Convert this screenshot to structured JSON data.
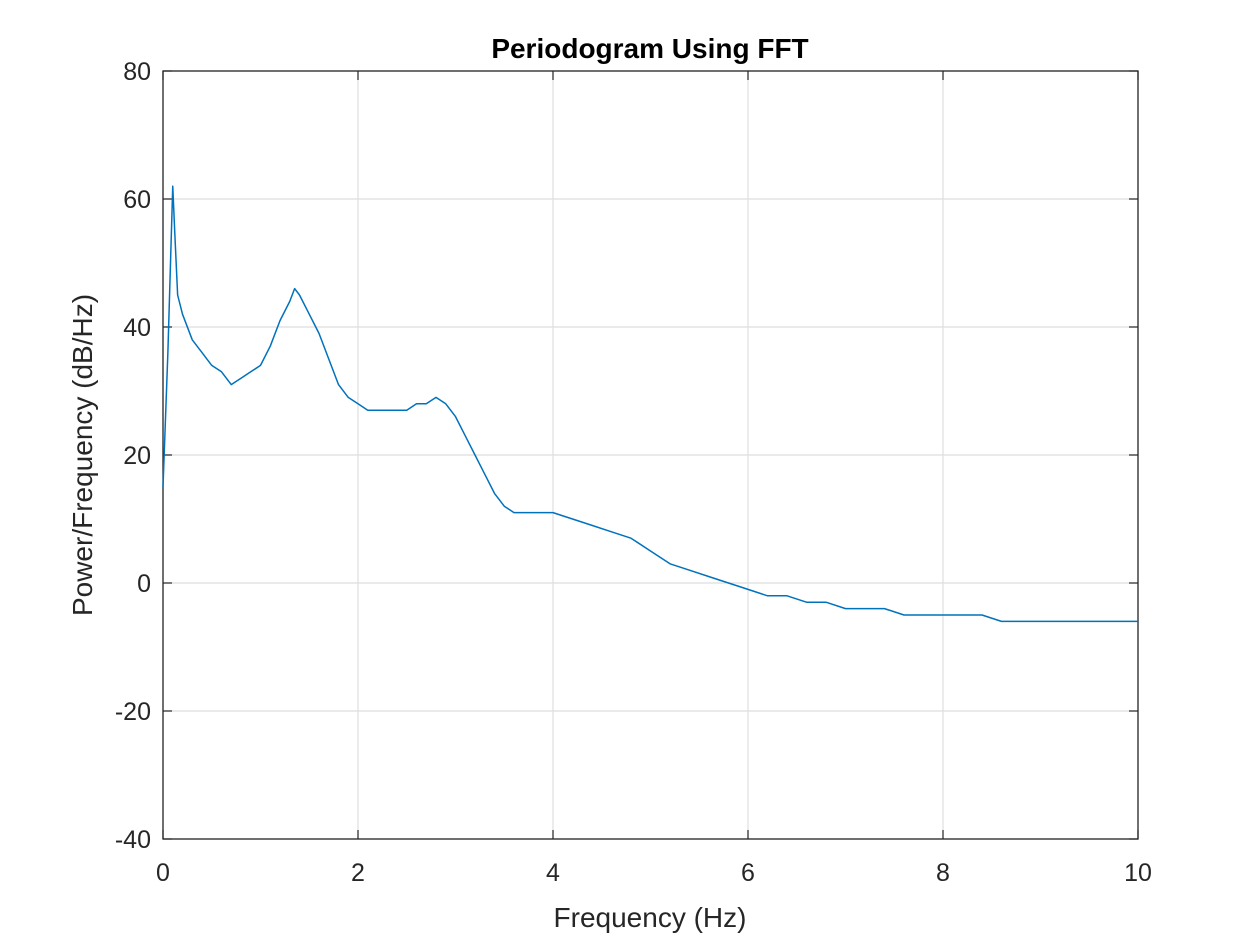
{
  "chart_data": {
    "type": "line",
    "title": "Periodogram Using FFT",
    "xlabel": "Frequency (Hz)",
    "ylabel": "Power/Frequency (dB/Hz)",
    "xlim": [
      0,
      10
    ],
    "ylim": [
      -40,
      80
    ],
    "x_ticks": [
      "0",
      "2",
      "4",
      "6",
      "8",
      "10"
    ],
    "y_ticks": [
      "-40",
      "-20",
      "0",
      "20",
      "40",
      "60",
      "80"
    ],
    "grid": true,
    "legend": "none",
    "series": [
      {
        "color": "#0072BD",
        "x": [
          0,
          0.05,
          0.1,
          0.12,
          0.15,
          0.2,
          0.3,
          0.4,
          0.5,
          0.6,
          0.7,
          0.8,
          0.9,
          1.0,
          1.1,
          1.2,
          1.3,
          1.35,
          1.4,
          1.5,
          1.6,
          1.7,
          1.8,
          1.9,
          2.0,
          2.1,
          2.2,
          2.3,
          2.4,
          2.5,
          2.6,
          2.7,
          2.8,
          2.9,
          3.0,
          3.1,
          3.2,
          3.3,
          3.4,
          3.5,
          3.6,
          3.7,
          3.8,
          3.9,
          4.0,
          4.2,
          4.4,
          4.6,
          4.8,
          5.0,
          5.2,
          5.4,
          5.6,
          5.8,
          6.0,
          6.2,
          6.4,
          6.6,
          6.8,
          7.0,
          7.2,
          7.4,
          7.6,
          7.8,
          8.0,
          8.2,
          8.4,
          8.6,
          8.8,
          9.0,
          9.2,
          9.4,
          9.6,
          9.8,
          10.0
        ],
        "y": [
          15,
          36,
          62,
          55,
          45,
          42,
          38,
          36,
          34,
          33,
          31,
          32,
          33,
          34,
          37,
          41,
          44,
          46,
          45,
          42,
          39,
          35,
          31,
          29,
          28,
          27,
          27,
          27,
          27,
          27,
          28,
          28,
          29,
          28,
          26,
          23,
          20,
          17,
          14,
          12,
          11,
          11,
          11,
          11,
          11,
          10,
          9,
          8,
          7,
          5,
          3,
          2,
          1,
          0,
          -1,
          -2,
          -2,
          -3,
          -3,
          -4,
          -4,
          -4,
          -5,
          -5,
          -5,
          -5,
          -5,
          -6,
          -6,
          -6,
          -6,
          -6,
          -6,
          -6,
          -6
        ]
      }
    ]
  }
}
